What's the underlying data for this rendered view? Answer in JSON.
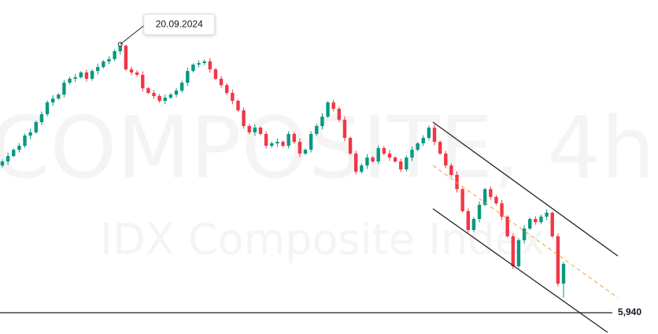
{
  "chart_data": {
    "type": "candlestick",
    "watermark": "COMPOSITE, 4h",
    "watermark_subtitle": "IDX Composite Index",
    "categories": [
      null,
      null,
      null,
      null,
      null,
      null,
      null,
      null,
      null,
      null,
      null,
      null,
      null,
      null,
      null,
      null,
      null,
      null,
      null,
      null,
      null,
      "20.09.2024",
      null,
      null,
      null,
      null,
      null,
      null,
      null,
      null,
      null,
      null,
      null,
      null,
      null,
      null,
      null,
      null,
      null,
      null,
      null,
      null,
      null,
      null,
      null,
      null,
      null,
      null,
      null,
      null,
      null,
      null,
      null,
      null,
      null,
      null,
      null,
      null,
      null,
      null,
      null,
      null,
      null,
      null,
      null,
      null,
      null,
      null,
      null,
      null,
      null,
      null,
      null,
      null,
      null,
      null,
      null,
      null,
      null,
      null,
      null,
      null,
      null,
      null,
      null,
      null,
      null,
      null,
      null,
      null,
      null,
      null,
      null,
      null,
      null,
      null,
      null,
      null,
      null,
      null,
      null
    ],
    "open": [
      7020,
      7050,
      7090,
      7136,
      7165,
      7240,
      7264,
      7339,
      7397,
      7483,
      7512,
      7541,
      7628,
      7657,
      7668,
      7703,
      7657,
      7714,
      7743,
      7784,
      7801,
      7859,
      7899,
      7726,
      7703,
      7686,
      7587,
      7553,
      7530,
      7495,
      7518,
      7541,
      7570,
      7628,
      7714,
      7761,
      7772,
      7784,
      7726,
      7657,
      7610,
      7553,
      7495,
      7425,
      7310,
      7264,
      7298,
      7252,
      7165,
      7183,
      7194,
      7165,
      7252,
      7194,
      7108,
      7136,
      7252,
      7310,
      7379,
      7483,
      7437,
      7356,
      7223,
      7108,
      6975,
      7021,
      7079,
      7050,
      7148,
      7108,
      7079,
      7050,
      6992,
      7079,
      7136,
      7183,
      7223,
      7298,
      7194,
      7108,
      7021,
      6952,
      6847,
      6686,
      6547,
      6628,
      6732,
      6847,
      6790,
      6743,
      6645,
      6501,
      6281,
      6472,
      6558,
      6628,
      6605,
      6645,
      6674,
      6501,
      6154
    ],
    "high": [
      7065,
      7115,
      7146,
      7185,
      7255,
      7289,
      7349,
      7417,
      7498,
      7537,
      7551,
      7648,
      7672,
      7693,
      7713,
      7723,
      7729,
      7768,
      7794,
      7821,
      7874,
      7910,
      7909,
      7746,
      7718,
      7711,
      7597,
      7573,
      7545,
      7543,
      7551,
      7590,
      7643,
      7739,
      7771,
      7792,
      7799,
      7809,
      7736,
      7677,
      7625,
      7578,
      7505,
      7445,
      7325,
      7323,
      7308,
      7272,
      7198,
      7219,
      7204,
      7272,
      7267,
      7219,
      7146,
      7272,
      7325,
      7404,
      7493,
      7503,
      7452,
      7381,
      7233,
      7128,
      7036,
      7104,
      7089,
      7168,
      7163,
      7133,
      7089,
      7070,
      7094,
      7161,
      7193,
      7243,
      7313,
      7323,
      7204,
      7128,
      7036,
      6977,
      6857,
      6706,
      6643,
      6757,
      6857,
      6867,
      6805,
      6768,
      6655,
      6521,
      6487,
      6583,
      6638,
      6648,
      6660,
      6699,
      6684,
      6521,
      6313
    ],
    "low": [
      7005,
      7025,
      7080,
      7116,
      7150,
      7215,
      7254,
      7319,
      7382,
      7458,
      7502,
      7521,
      7613,
      7632,
      7658,
      7637,
      7642,
      7689,
      7733,
      7764,
      7786,
      7834,
      7716,
      7683,
      7671,
      7562,
      7543,
      7510,
      7480,
      7470,
      7508,
      7521,
      7555,
      7603,
      7704,
      7741,
      7757,
      7701,
      7647,
      7590,
      7538,
      7470,
      7415,
      7290,
      7249,
      7239,
      7242,
      7145,
      7150,
      7158,
      7155,
      7145,
      7179,
      7083,
      7098,
      7116,
      7237,
      7285,
      7369,
      7417,
      7341,
      7198,
      7098,
      6955,
      6960,
      6996,
      7040,
      7030,
      7093,
      7054,
      7040,
      6972,
      6977,
      7054,
      7126,
      7163,
      7208,
      7169,
      7098,
      7001,
      6937,
      6822,
      6676,
      6527,
      6532,
      6603,
      6722,
      6770,
      6728,
      6620,
      6491,
      6261,
      6266,
      6447,
      6548,
      6585,
      6590,
      6620,
      6491,
      6134,
      6050
    ],
    "close": [
      7050,
      7090,
      7136,
      7165,
      7240,
      7264,
      7339,
      7397,
      7483,
      7512,
      7541,
      7628,
      7657,
      7668,
      7703,
      7657,
      7714,
      7743,
      7784,
      7801,
      7859,
      7899,
      7726,
      7703,
      7686,
      7587,
      7553,
      7530,
      7495,
      7518,
      7541,
      7570,
      7628,
      7714,
      7761,
      7772,
      7784,
      7726,
      7657,
      7610,
      7553,
      7495,
      7425,
      7310,
      7264,
      7298,
      7252,
      7165,
      7183,
      7194,
      7165,
      7252,
      7194,
      7108,
      7136,
      7252,
      7310,
      7379,
      7483,
      7437,
      7356,
      7223,
      7108,
      6975,
      7021,
      7079,
      7050,
      7148,
      7108,
      7079,
      7050,
      6992,
      7079,
      7136,
      7183,
      7223,
      7298,
      7194,
      7108,
      7021,
      6952,
      6847,
      6686,
      6547,
      6628,
      6732,
      6847,
      6790,
      6743,
      6645,
      6501,
      6281,
      6472,
      6558,
      6628,
      6605,
      6645,
      6674,
      6501,
      6154,
      6298
    ],
    "up_color": "#089981",
    "down_color": "#f23645",
    "ylim": [
      5784,
      8235
    ],
    "hline": {
      "value": 5940,
      "label": "5,940"
    }
  }
}
